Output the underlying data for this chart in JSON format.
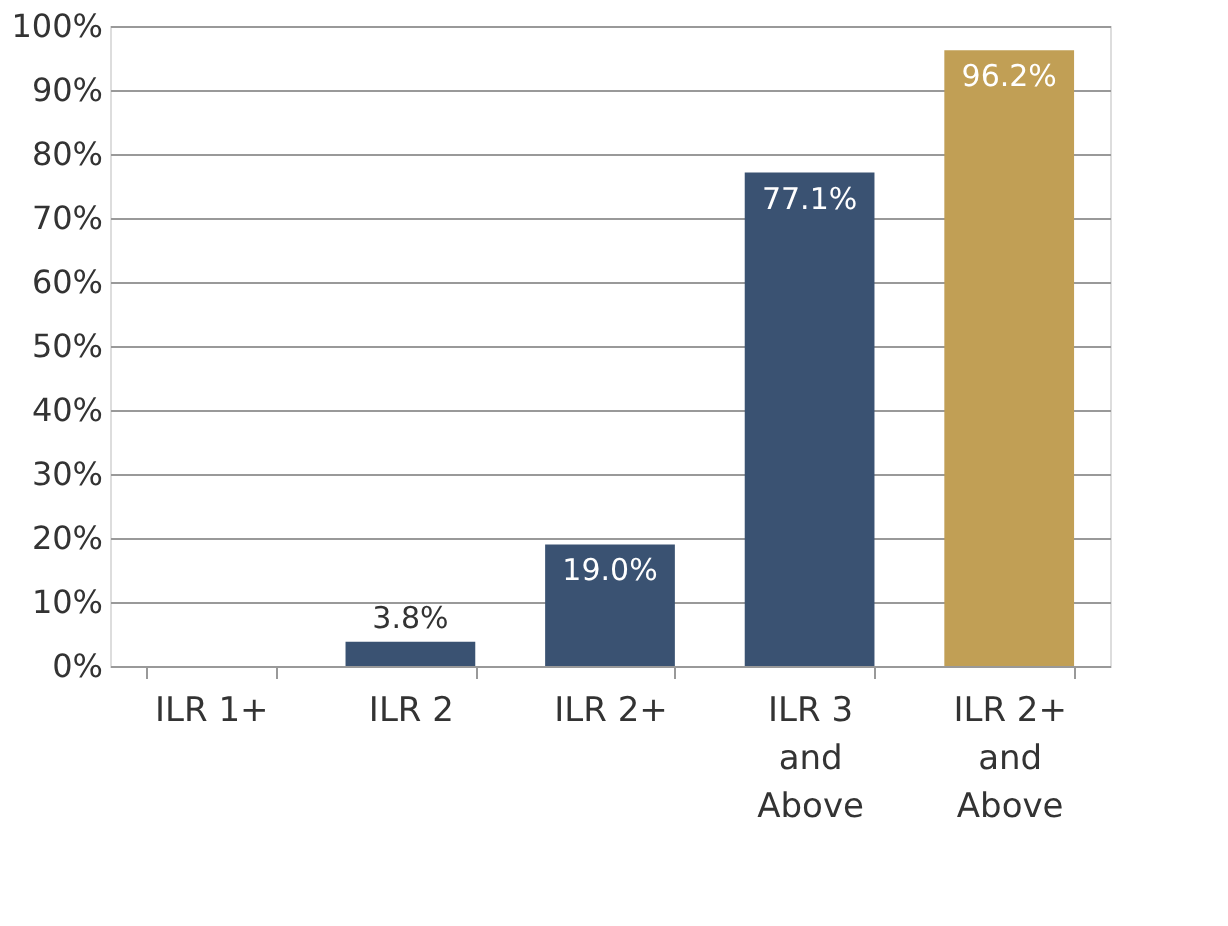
{
  "chart_data": {
    "type": "bar",
    "categories": [
      "ILR 1+",
      "ILR 2",
      "ILR 2+",
      "ILR 3 and Above",
      "ILR 2+ and Above"
    ],
    "values": [
      0,
      3.8,
      19.0,
      77.1,
      96.2
    ],
    "colors": [
      "#3a5272",
      "#3a5272",
      "#3a5272",
      "#3a5272",
      "#c19f55"
    ],
    "value_labels": [
      null,
      "3.8%",
      "19.0%",
      "77.1%",
      "96.2%"
    ],
    "ylim": [
      0,
      100
    ],
    "yticks": [
      {
        "value": 0,
        "label": "0%"
      },
      {
        "value": 10,
        "label": "10%"
      },
      {
        "value": 20,
        "label": "20%"
      },
      {
        "value": 30,
        "label": "30%"
      },
      {
        "value": 40,
        "label": "40%"
      },
      {
        "value": 50,
        "label": "50%"
      },
      {
        "value": 60,
        "label": "60%"
      },
      {
        "value": 70,
        "label": "70%"
      },
      {
        "value": 80,
        "label": "80%"
      },
      {
        "value": 90,
        "label": "90%"
      },
      {
        "value": 100,
        "label": "100%"
      }
    ],
    "grid": "y"
  }
}
